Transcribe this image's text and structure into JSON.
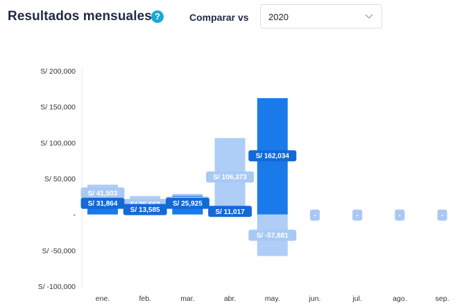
{
  "header": {
    "title": "Resultados mensuales",
    "help_icon": "question-circle-icon",
    "compare_label": "Comparar vs",
    "compare_select": {
      "value": "2020",
      "icon": "chevron-down-icon"
    }
  },
  "colors": {
    "current": "#1a7aea",
    "comparison": "#aecdf7",
    "label_current_bg": "#1469d6",
    "label_comparison_bg": "#a9c9f4",
    "axis_text": "#333333"
  },
  "chart_data": {
    "type": "bar",
    "categories": [
      "ene.",
      "feb.",
      "mar.",
      "abr.",
      "may.",
      "jun.",
      "jul.",
      "ago.",
      "sep."
    ],
    "ylim": [
      -100000,
      200000
    ],
    "yticks": [
      200000,
      150000,
      100000,
      50000,
      0,
      -50000,
      -100000
    ],
    "ytick_labels": [
      "S/ 200,000",
      "S/ 150,000",
      "S/ 100,000",
      "S/ 50,000",
      "-",
      "S/ -50,000",
      "S/ -100,000"
    ],
    "series": [
      {
        "values": [
          31864,
          13585,
          25925,
          11017,
          162034,
          null,
          null,
          null,
          null
        ],
        "labels": [
          "S/ 31,864",
          "S/ 13,585",
          "S/ 25,925",
          "S/ 11,017",
          "S/ 162,034",
          "",
          "",
          "",
          ""
        ]
      },
      {
        "values": [
          41503,
          25567,
          28736,
          106373,
          -57881,
          0,
          0,
          0,
          0
        ],
        "labels": [
          "S/ 41,503",
          "S/ 25,567",
          "S/ 28,736",
          "S/ 106,373",
          "S/ -57,881",
          "-",
          "-",
          "-",
          "-"
        ]
      }
    ],
    "grid": false
  }
}
